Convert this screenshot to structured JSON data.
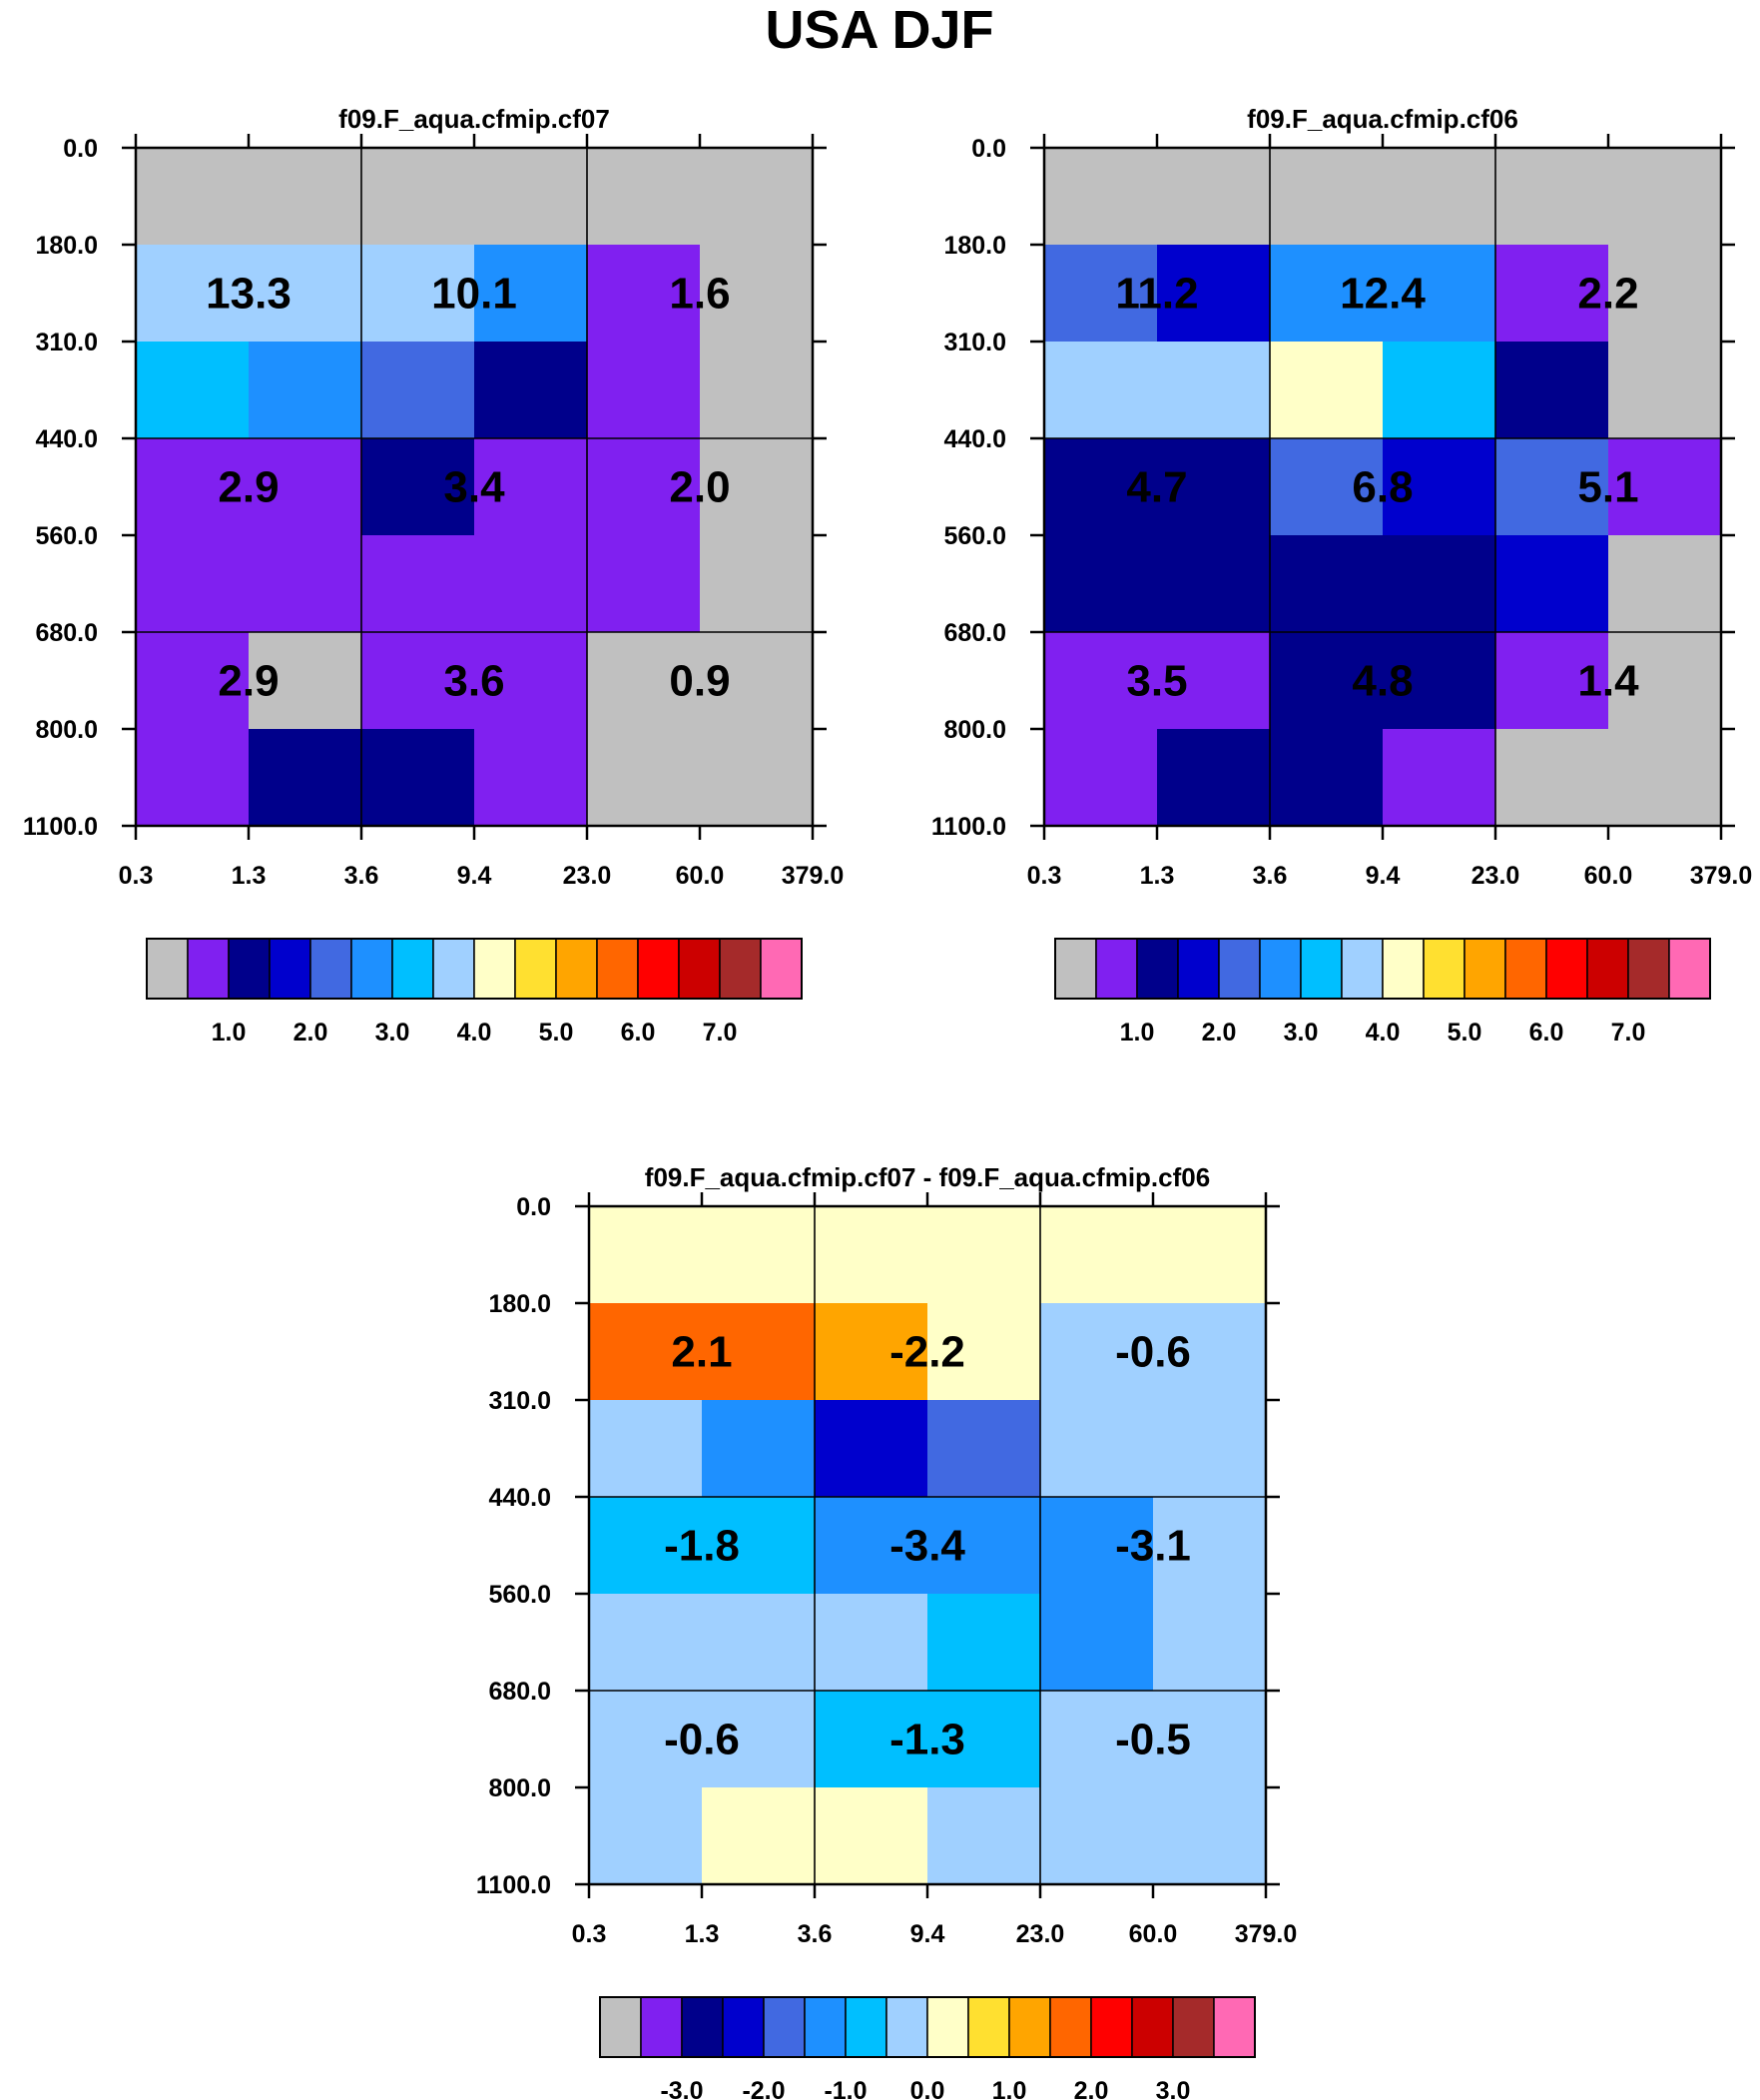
{
  "title": "USA DJF",
  "colors": {
    "palette": [
      "#c0c0c0",
      "#8020f0",
      "#00008b",
      "#0000cd",
      "#4169e1",
      "#1e90ff",
      "#00bfff",
      "#a0d0ff",
      "#ffffc8",
      "#ffe030",
      "#ffa500",
      "#ff6600",
      "#ff0000",
      "#cc0000",
      "#a52a2a",
      "#ff69b4"
    ]
  },
  "chart_data": [
    {
      "type": "heatmap",
      "title": "f09.F_aqua.cfmip.cf07",
      "x_ticks": [
        "0.3",
        "1.3",
        "3.6",
        "9.4",
        "23.0",
        "60.0",
        "379.0"
      ],
      "y_ticks": [
        "0.0",
        "180.0",
        "310.0",
        "440.0",
        "560.0",
        "680.0",
        "800.0",
        "1100.0"
      ],
      "cell_color_index": [
        [
          0,
          0,
          0,
          0,
          0,
          0
        ],
        [
          7,
          7,
          7,
          5,
          1,
          0
        ],
        [
          6,
          5,
          4,
          2,
          1,
          0
        ],
        [
          1,
          1,
          2,
          1,
          1,
          0
        ],
        [
          1,
          1,
          1,
          1,
          1,
          0
        ],
        [
          1,
          0,
          1,
          1,
          0,
          0
        ],
        [
          1,
          2,
          2,
          1,
          0,
          0
        ]
      ],
      "block_values": [
        [
          "13.3",
          "10.1",
          "1.6"
        ],
        [
          "2.9",
          "3.4",
          "2.0"
        ],
        [
          "2.9",
          "3.6",
          "0.9"
        ]
      ],
      "colorbar": {
        "tick_labels": [
          "1.0",
          "2.0",
          "3.0",
          "4.0",
          "5.0",
          "6.0",
          "7.0"
        ]
      }
    },
    {
      "type": "heatmap",
      "title": "f09.F_aqua.cfmip.cf06",
      "x_ticks": [
        "0.3",
        "1.3",
        "3.6",
        "9.4",
        "23.0",
        "60.0",
        "379.0"
      ],
      "y_ticks": [
        "0.0",
        "180.0",
        "310.0",
        "440.0",
        "560.0",
        "680.0",
        "800.0",
        "1100.0"
      ],
      "cell_color_index": [
        [
          0,
          0,
          0,
          0,
          0,
          0
        ],
        [
          4,
          3,
          5,
          5,
          1,
          0
        ],
        [
          7,
          7,
          8,
          6,
          2,
          0
        ],
        [
          2,
          2,
          4,
          3,
          4,
          1
        ],
        [
          2,
          2,
          2,
          2,
          3,
          0
        ],
        [
          1,
          1,
          2,
          2,
          1,
          0
        ],
        [
          1,
          2,
          2,
          1,
          0,
          0
        ]
      ],
      "block_values": [
        [
          "11.2",
          "12.4",
          "2.2"
        ],
        [
          "4.7",
          "6.8",
          "5.1"
        ],
        [
          "3.5",
          "4.8",
          "1.4"
        ]
      ],
      "colorbar": {
        "tick_labels": [
          "1.0",
          "2.0",
          "3.0",
          "4.0",
          "5.0",
          "6.0",
          "7.0"
        ]
      }
    },
    {
      "type": "heatmap",
      "title": "f09.F_aqua.cfmip.cf07 - f09.F_aqua.cfmip.cf06",
      "x_ticks": [
        "0.3",
        "1.3",
        "3.6",
        "9.4",
        "23.0",
        "60.0",
        "379.0"
      ],
      "y_ticks": [
        "0.0",
        "180.0",
        "310.0",
        "440.0",
        "560.0",
        "680.0",
        "800.0",
        "1100.0"
      ],
      "cell_color_index": [
        [
          8,
          8,
          8,
          8,
          8,
          8
        ],
        [
          11,
          11,
          10,
          8,
          7,
          7
        ],
        [
          7,
          5,
          3,
          4,
          7,
          7
        ],
        [
          6,
          6,
          5,
          5,
          5,
          7
        ],
        [
          7,
          7,
          7,
          6,
          5,
          7
        ],
        [
          7,
          7,
          6,
          6,
          7,
          7
        ],
        [
          7,
          8,
          8,
          7,
          7,
          7
        ]
      ],
      "block_values": [
        [
          "2.1",
          "-2.2",
          "-0.6"
        ],
        [
          "-1.8",
          "-3.4",
          "-3.1"
        ],
        [
          "-0.6",
          "-1.3",
          "-0.5"
        ]
      ],
      "colorbar": {
        "tick_labels": [
          "-3.0",
          "-2.0",
          "-1.0",
          "0.0",
          "1.0",
          "2.0",
          "3.0"
        ]
      }
    }
  ]
}
